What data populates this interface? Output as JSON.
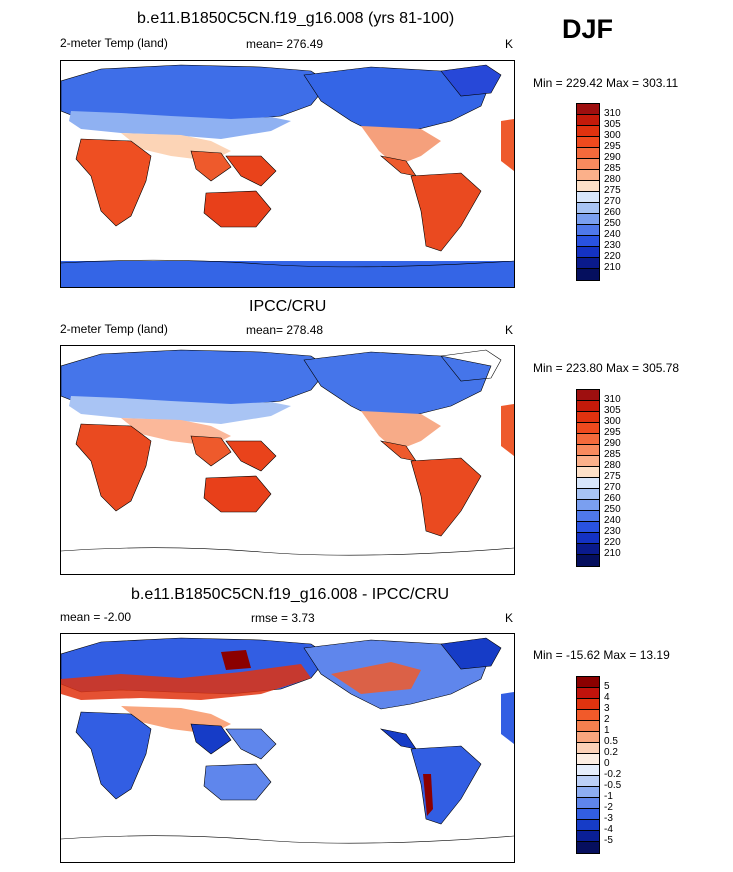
{
  "season": "DJF",
  "panels": [
    {
      "title": "b.e11.B1850C5CN.f19_g16.008 (yrs 81-100)",
      "left_label": "2-meter Temp (land)",
      "center_label": "mean= 276.49",
      "right_label": "K",
      "minmax": "Min = 229.42 Max = 303.11",
      "colorbar_labels": [
        "310",
        "305",
        "300",
        "295",
        "290",
        "285",
        "280",
        "275",
        "270",
        "260",
        "250",
        "240",
        "230",
        "220",
        "210"
      ]
    },
    {
      "title": "IPCC/CRU",
      "left_label": "2-meter Temp (land)",
      "center_label": "mean= 278.48",
      "right_label": "K",
      "minmax": "Min = 223.80 Max = 305.78",
      "colorbar_labels": [
        "310",
        "305",
        "300",
        "295",
        "290",
        "285",
        "280",
        "275",
        "270",
        "260",
        "250",
        "240",
        "230",
        "220",
        "210"
      ]
    },
    {
      "title": "b.e11.B1850C5CN.f19_g16.008 - IPCC/CRU",
      "left_label": "mean =  -2.00",
      "center_label": "rmse =   3.73",
      "right_label": "K",
      "minmax": "Min = -15.62 Max =  13.19",
      "colorbar_labels": [
        "5",
        "4",
        "3",
        "2",
        "1",
        "0.5",
        "0.2",
        "0",
        "-0.2",
        "-0.5",
        "-1",
        "-2",
        "-3",
        "-4",
        "-5"
      ]
    }
  ],
  "colors": {
    "temp_scale": [
      "#9e0f0f",
      "#c41a0a",
      "#e0320f",
      "#ef4a1e",
      "#f46a3c",
      "#f88a5e",
      "#fbb08a",
      "#fde0c8",
      "#d8e6fb",
      "#a7c3f4",
      "#7a9ff0",
      "#4f78ea",
      "#2952e0",
      "#1432c3",
      "#0a1a8c",
      "#050f5e"
    ],
    "diff_scale": [
      "#8b0000",
      "#c1130c",
      "#e0330f",
      "#f15a2a",
      "#f6804f",
      "#f9a67e",
      "#fcd1b7",
      "#fdeee3",
      "#e6eefc",
      "#bcd0f7",
      "#8eaef2",
      "#5f86ec",
      "#325ee3",
      "#163cc7",
      "#0a1f96",
      "#060f5e"
    ]
  }
}
